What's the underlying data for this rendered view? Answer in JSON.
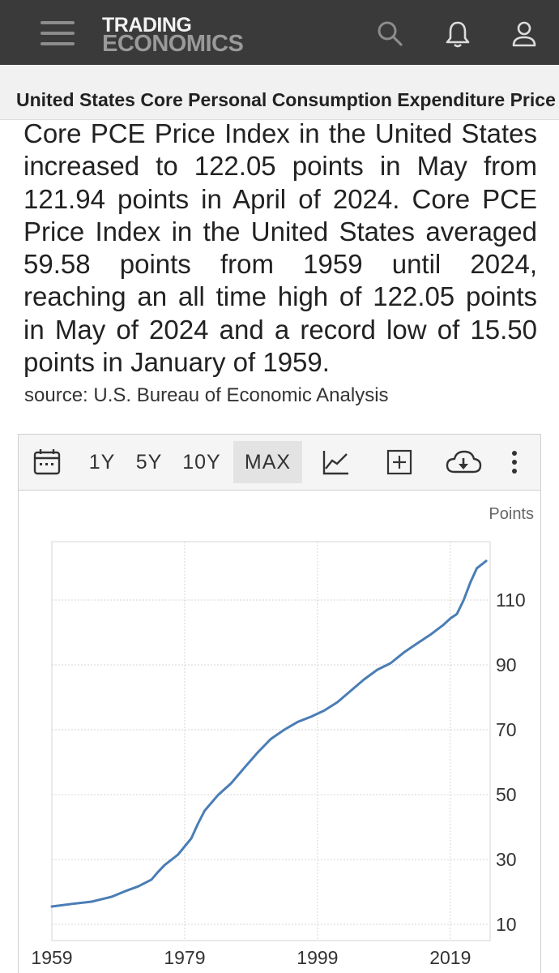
{
  "header": {
    "logo_top": "TRADING",
    "logo_bottom": "ECONOMICS",
    "icons": [
      "menu-icon",
      "search-icon",
      "bell-icon",
      "user-icon"
    ]
  },
  "page": {
    "title": "United States Core Personal Consumption Expenditure Price Index",
    "description": "Core PCE Price Index in the United States increased to 122.05 points in May from 121.94 points in April of 2024. Core PCE Price Index in the United States averaged 59.58 points from 1959 until 2024, reaching an all time high of 122.05 points in May of 2024 and a record low of 15.50 points in January of 1959.",
    "source": "source: U.S. Bureau of Economic Analysis"
  },
  "toolbar": {
    "ranges": [
      "1Y",
      "5Y",
      "10Y",
      "MAX"
    ],
    "active_range": "MAX",
    "icons": [
      "calendar-icon",
      "line-chart-icon",
      "add-icon",
      "download-cloud-icon",
      "more-vertical-icon"
    ]
  },
  "colors": {
    "header_bg": "#3a3a3a",
    "line": "#4a7db5"
  },
  "chart_data": {
    "type": "line",
    "unit": "Points",
    "x": [
      1959,
      1962,
      1965,
      1968,
      1970,
      1972,
      1974,
      1975,
      1976,
      1978,
      1980,
      1981,
      1982,
      1984,
      1986,
      1988,
      1990,
      1992,
      1994,
      1996,
      1998,
      2000,
      2002,
      2004,
      2006,
      2008,
      2010,
      2012,
      2014,
      2016,
      2018,
      2019,
      2020,
      2021,
      2022,
      2023,
      2024.4
    ],
    "y": [
      15.5,
      16.3,
      17.0,
      18.5,
      20.2,
      21.7,
      23.8,
      26.2,
      28.3,
      31.5,
      36.5,
      41.0,
      45.0,
      49.8,
      53.5,
      58.3,
      63.0,
      67.2,
      70.0,
      72.4,
      74.0,
      75.9,
      78.5,
      82.0,
      85.5,
      88.5,
      90.5,
      93.8,
      96.6,
      99.3,
      102.4,
      104.3,
      105.7,
      109.9,
      115.3,
      119.8,
      122.05
    ],
    "x_ticks": [
      1959,
      1979,
      1999,
      2019
    ],
    "y_ticks": [
      10,
      30,
      50,
      70,
      90,
      110
    ],
    "xlim": [
      1959,
      2025
    ],
    "ylim": [
      5,
      128
    ],
    "grid": true
  }
}
